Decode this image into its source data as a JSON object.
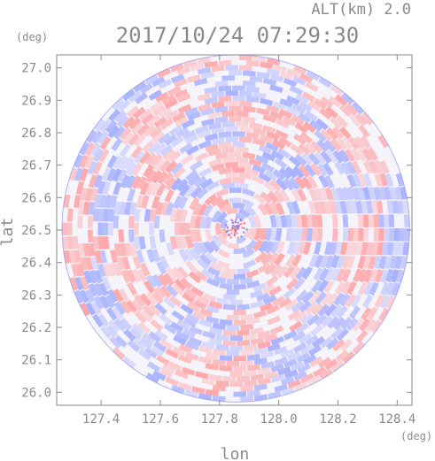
{
  "header": {
    "altitude_label": "ALT(km)  2.0",
    "timestamp": "2017/10/24 07:29:30"
  },
  "chart_data": {
    "type": "heatmap",
    "projection": "radar-ppi-disk",
    "xlabel": "lon",
    "ylabel": "lat",
    "x_unit": "(deg)",
    "y_unit": "(deg)",
    "xlim": [
      127.25,
      128.45
    ],
    "ylim": [
      25.96,
      27.04
    ],
    "center": {
      "lon": 127.855,
      "lat": 26.505
    },
    "radius_deg_lat": 0.535,
    "x_ticks": [
      {
        "value": 127.4,
        "label": "127.4"
      },
      {
        "value": 127.6,
        "label": "127.6"
      },
      {
        "value": 127.8,
        "label": "127.8"
      },
      {
        "value": 128.0,
        "label": "128.0"
      },
      {
        "value": 128.2,
        "label": "128.2"
      },
      {
        "value": 128.4,
        "label": "128.4"
      }
    ],
    "y_ticks": [
      {
        "value": 26.0,
        "label": "26.0"
      },
      {
        "value": 26.1,
        "label": "26.1"
      },
      {
        "value": 26.2,
        "label": "26.2"
      },
      {
        "value": 26.3,
        "label": "26.3"
      },
      {
        "value": 26.4,
        "label": "26.4"
      },
      {
        "value": 26.5,
        "label": "26.5"
      },
      {
        "value": 26.6,
        "label": "26.6"
      },
      {
        "value": 26.7,
        "label": "26.7"
      },
      {
        "value": 26.8,
        "label": "26.8"
      },
      {
        "value": 26.9,
        "label": "26.9"
      },
      {
        "value": 27.0,
        "label": "27.0"
      }
    ],
    "grid": false,
    "legend": "none",
    "colors": {
      "positive": "#ff9a9a",
      "negative": "#9aa6ff",
      "axis": "#8a8a8a"
    }
  }
}
